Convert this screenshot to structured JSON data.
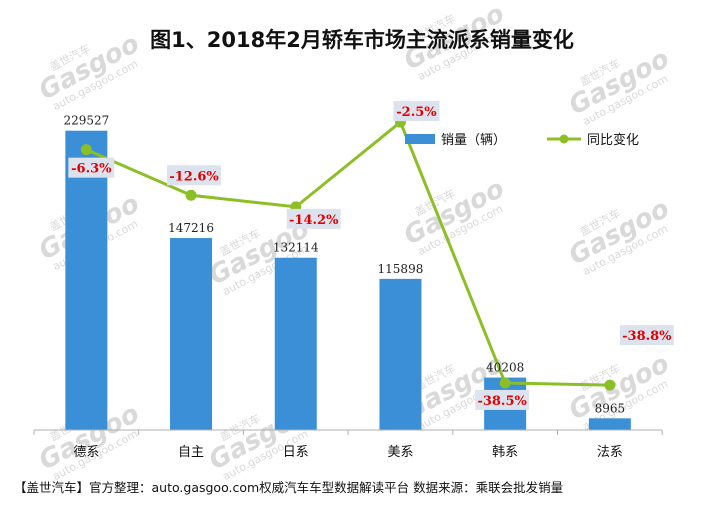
{
  "chart_data": {
    "type": "bar",
    "title": "图1、2018年2月轿车市场主流派系销量变化",
    "categories": [
      "德系",
      "自主",
      "日系",
      "美系",
      "韩系",
      "法系"
    ],
    "series": [
      {
        "name": "销量（辆）",
        "type": "bar",
        "values": [
          229527,
          147216,
          132114,
          115898,
          40208,
          8965
        ],
        "labels": [
          "229527",
          "147216",
          "132114",
          "115898",
          "40208",
          "8965"
        ]
      },
      {
        "name": "同比变化",
        "type": "line",
        "values": [
          -6.3,
          -12.6,
          -14.2,
          -2.5,
          -38.5,
          -38.8
        ],
        "labels": [
          "-6.3%",
          "-12.6%",
          "-14.2%",
          "-2.5%",
          "-38.5%",
          "-38.8%"
        ]
      }
    ],
    "ylim": [
      0,
      250000
    ],
    "y2lim": [
      -45,
      0
    ],
    "grid": false,
    "legend_position": "top-right"
  },
  "colors": {
    "bar": "#3b8fd6",
    "line": "#8cbf26",
    "pct_text": "#e00000",
    "pct_box": "#dde3ee"
  },
  "footer": "【盖世汽车】官方整理：auto.gasgoo.com权威汽车车型数据解读平台  数据来源：乘联会批发销量",
  "watermark": {
    "cn": "盖世汽车",
    "brand": "Gasgoo",
    "url": "auto.gasgoo.com"
  }
}
